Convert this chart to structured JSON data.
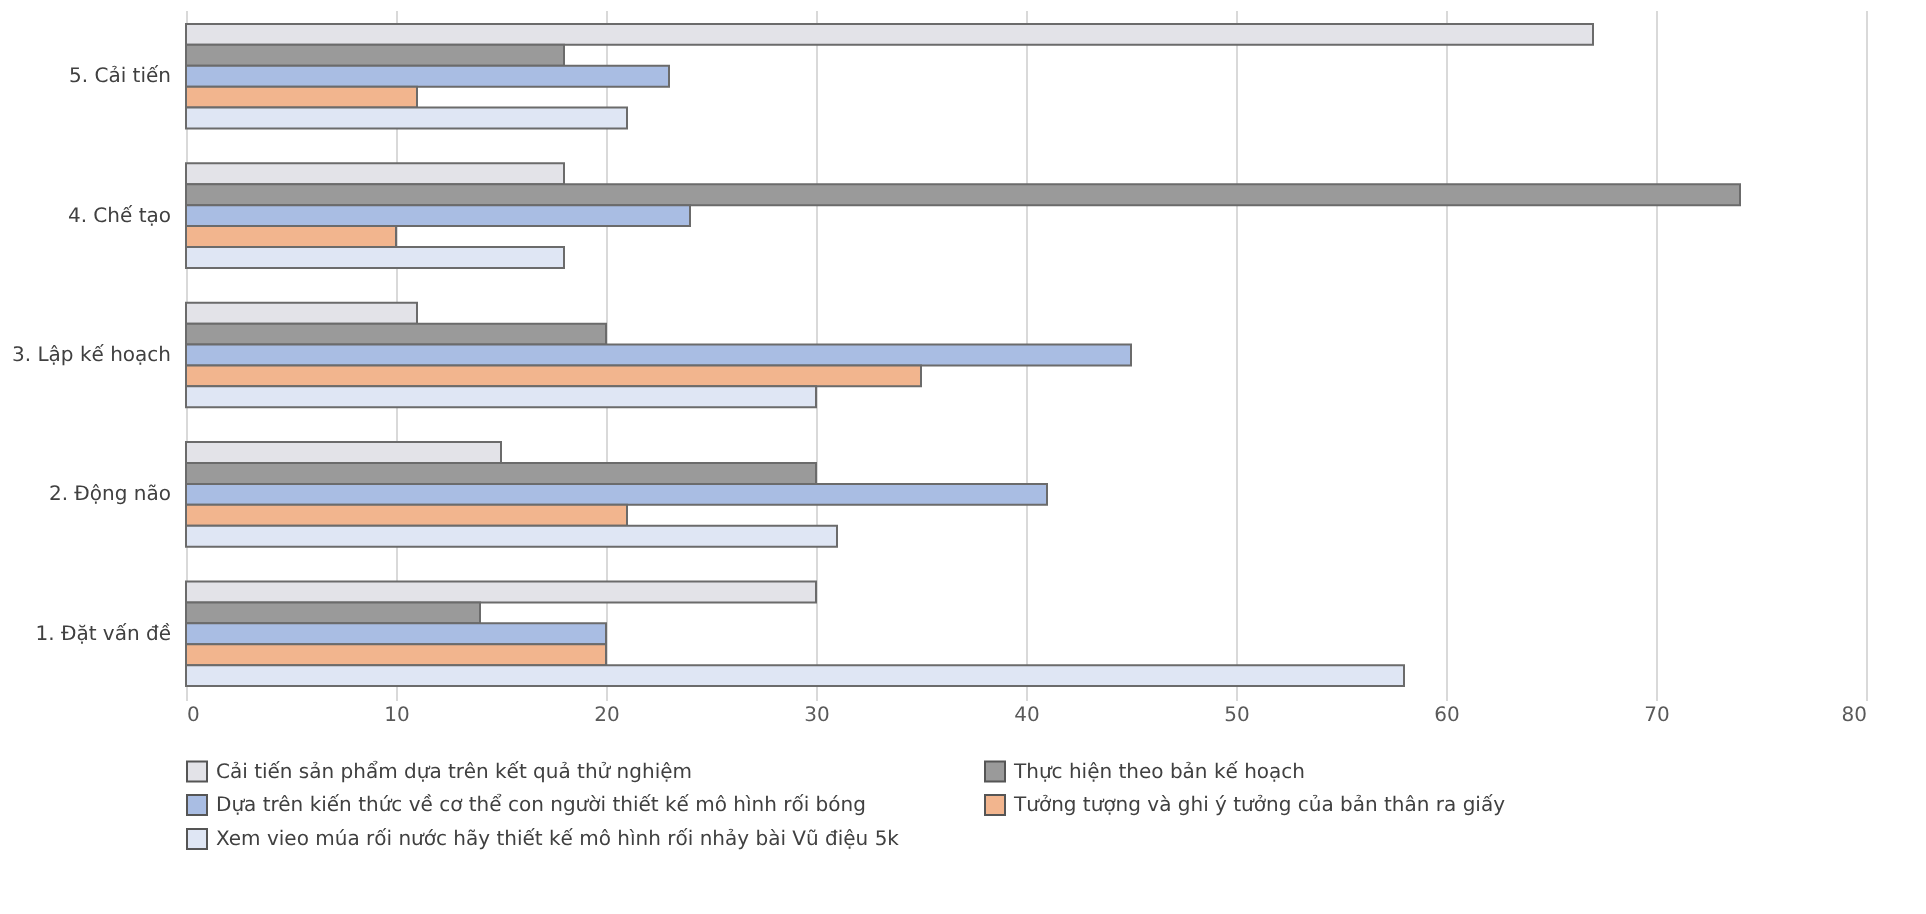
{
  "chart_data": {
    "type": "bar",
    "orientation": "horizontal",
    "categories": [
      "5. Cải tiến",
      "4. Chế tạo",
      "3. Lập kế hoạch",
      "2. Động não",
      "1. Đặt vấn đề"
    ],
    "series": [
      {
        "name": "Cải tiến sản phẩm dựa trên kết quả thử nghiệm",
        "color": "#e3e3e8",
        "values": [
          67,
          18,
          11,
          15,
          30
        ]
      },
      {
        "name": "Thực hiện theo bản kế hoạch",
        "color": "#9a9a9a",
        "values": [
          18,
          74,
          20,
          30,
          14
        ]
      },
      {
        "name": "Dựa trên kiến thức về cơ thể con người thiết kế mô hình rối bóng",
        "color": "#a9bde3",
        "values": [
          23,
          24,
          45,
          41,
          20
        ]
      },
      {
        "name": "Tưởng tượng và ghi ý tưởng của bản thân ra giấy",
        "color": "#f2b58e",
        "values": [
          11,
          10,
          35,
          21,
          20
        ]
      },
      {
        "name": "Xem vieo múa rối nước hãy thiết kế mô hình rối nhảy bài Vũ điệu 5k",
        "color": "#dfe6f4",
        "values": [
          21,
          18,
          30,
          31,
          58
        ]
      }
    ],
    "xlim": [
      0,
      80
    ],
    "xticks": [
      0,
      10,
      20,
      30,
      40,
      50,
      60,
      70,
      80
    ],
    "grid": "x",
    "legend": "bottom"
  }
}
